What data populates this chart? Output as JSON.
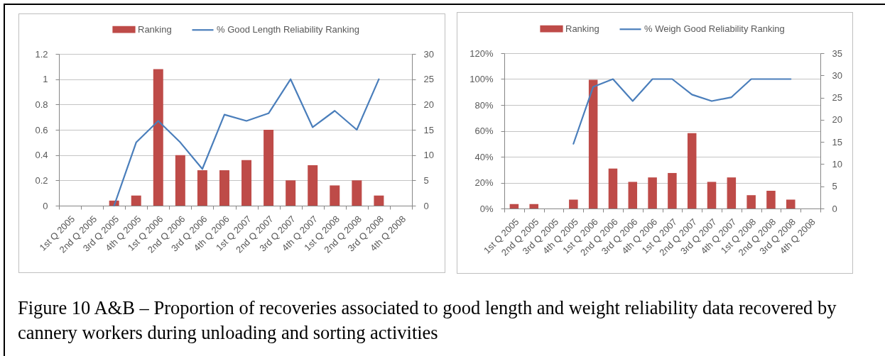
{
  "chart_data": [
    {
      "type": "bar",
      "categories": [
        "1st Q 2005",
        "2nd Q 2005",
        "3rd Q 2005",
        "4th Q 2005",
        "1st Q 2006",
        "2nd Q 2006",
        "3rd Q 2006",
        "4th Q 2006",
        "1st Q 2007",
        "2nd Q 2007",
        "3rd Q 2007",
        "4th Q 2007",
        "1st Q 2008",
        "2nd Q 2008",
        "3rd Q 2008",
        "4th Q 2008"
      ],
      "series": [
        {
          "name": "Ranking",
          "color": "#be4b48",
          "axis": "y2",
          "values": [
            null,
            null,
            1,
            2,
            27,
            10,
            7,
            7,
            9,
            15,
            5,
            8,
            4,
            5,
            2,
            null
          ]
        },
        {
          "name": "% Good Length Reliability Ranking",
          "type": "line",
          "color": "#4a7ebb",
          "values": [
            null,
            null,
            0,
            0.5,
            0.67,
            0.5,
            0.29,
            0.72,
            0.67,
            0.73,
            1,
            0.62,
            0.75,
            0.6,
            1,
            null
          ]
        }
      ],
      "ylim": [
        0,
        1.2
      ],
      "yticks": [
        0,
        0.2,
        0.4,
        0.6,
        0.8,
        1,
        1.2
      ],
      "y2lim": [
        0,
        30
      ],
      "y2ticks": [
        0,
        5,
        10,
        15,
        20,
        25,
        30
      ],
      "grid": "y",
      "legend": "top",
      "marker": "none",
      "line_style": "solid",
      "annotations": [
        "Figure 10 A&B – Proportion of recoveries associated to good length and weight reliability data recovered by cannery workers during unloading and sorting activities"
      ]
    },
    {
      "type": "bar",
      "categories": [
        "1st Q 2005",
        "2nd Q 2005",
        "3rd Q 2005",
        "4th Q 2005",
        "1st Q 2006",
        "2nd Q 2006",
        "3rd Q 2006",
        "4th Q 2006",
        "1st Q 2007",
        "2nd Q 2007",
        "3rd Q 2007",
        "4th Q 2007",
        "1st Q 2008",
        "2nd Q 2008",
        "3rd Q 2008",
        "4th Q 2008"
      ],
      "series": [
        {
          "name": "Ranking",
          "color": "#be4b48",
          "axis": "y2",
          "values": [
            1,
            1,
            null,
            2,
            29,
            9,
            6,
            7,
            8,
            17,
            6,
            7,
            3,
            4,
            2,
            null
          ]
        },
        {
          "name": "% Weigh Good Reliability Ranking",
          "type": "line",
          "color": "#4a7ebb",
          "values": [
            null,
            null,
            null,
            50,
            94,
            100,
            83,
            100,
            100,
            88,
            83,
            86,
            100,
            100,
            100,
            null
          ]
        }
      ],
      "ylim": [
        0,
        120
      ],
      "yticks": [
        {
          "value": 0,
          "label": "0%"
        },
        {
          "value": 20,
          "label": "20%"
        },
        {
          "value": 40,
          "label": "40%"
        },
        {
          "value": 60,
          "label": "60%"
        },
        {
          "value": 80,
          "label": "80%"
        },
        {
          "value": 100,
          "label": "100%"
        },
        {
          "value": 120,
          "label": "120%"
        }
      ],
      "y2lim": [
        0,
        35
      ],
      "y2ticks": [
        0,
        5,
        10,
        15,
        20,
        25,
        30,
        35
      ],
      "grid": "y",
      "legend": "top",
      "marker": "none",
      "line_style": "solid"
    }
  ]
}
